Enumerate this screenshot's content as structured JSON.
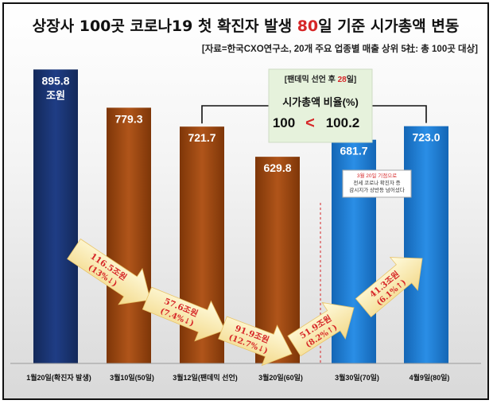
{
  "title_parts": [
    "상장사 100곳 코로나19 첫 확진자 발생 ",
    "80",
    "일 기준 시가총액 변동"
  ],
  "subtitle": "[자료=한국CXO연구소, 20개 주요 업종별 매출 상위 5社: 총 100곳 대상]",
  "callout": {
    "header_parts": [
      "[팬데믹 선언 후 ",
      "28",
      "일]"
    ],
    "label": "시가총액 비율(%)",
    "left_value": "100",
    "symbol": "<",
    "right_value": "100.2"
  },
  "note_lines": [
    "3월 20일 기점으로",
    "전세 코로나 확진자 증",
    "감시지가 상반등 넘어섰다"
  ],
  "colors": {
    "title_red": "#d62728",
    "navy": "#1f3a7a",
    "brown": "#a64b12",
    "blue": "#1e7fd6",
    "callout_bg": "#e6f2dc"
  },
  "chart_data": {
    "type": "bar",
    "categories": [
      "1월20일(확진자 발생)",
      "3월10일(50일)",
      "3월12일(팬데믹 선언)",
      "3월20일(60일)",
      "3월30일(70일)",
      "4월9일(80일)"
    ],
    "values": [
      895.8,
      779.3,
      721.7,
      629.8,
      681.7,
      723.0
    ],
    "value_labels": [
      "895.8",
      "779.3",
      "721.7",
      "629.8",
      "681.7",
      "723.0"
    ],
    "value_unit_first": "조원",
    "bar_colors": [
      "navy",
      "brown",
      "brown",
      "brown",
      "blue",
      "blue"
    ],
    "ylim": [
      0,
      950
    ],
    "changes": [
      {
        "amount": "116.5조원",
        "pct": "(13%↓)",
        "direction": "down"
      },
      {
        "amount": "57.6조원",
        "pct": "(7.4%↓)",
        "direction": "down"
      },
      {
        "amount": "91.9조원",
        "pct": "(12.7%↓)",
        "direction": "down"
      },
      {
        "amount": "51.9조원",
        "pct": "(8.2%↑)",
        "direction": "up"
      },
      {
        "amount": "41.3조원",
        "pct": "(6.1%↑)",
        "direction": "up"
      }
    ]
  }
}
